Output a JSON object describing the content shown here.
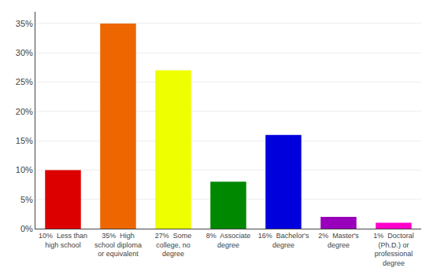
{
  "chart_data": {
    "type": "bar",
    "categories": [
      "10%  Less than\nhigh school",
      "35%  High\nschool diploma\nor equivalent",
      "27%  Some\ncollege, no\ndegree",
      "8%  Associate\ndegree",
      "16%  Bachelor's\ndegree",
      "2%  Master's\ndegree",
      "1%  Doctoral\n(Ph.D.) or\nprofessional\ndegree"
    ],
    "values": [
      10,
      35,
      27,
      8,
      16,
      2,
      1
    ],
    "colors": [
      "#dd0000",
      "#ee6600",
      "#eeff00",
      "#008800",
      "#0000dd",
      "#9900bb",
      "#ff00cc"
    ],
    "ylim": [
      0,
      37
    ],
    "yticks": [
      {
        "value": 0,
        "label": "0%"
      },
      {
        "value": 5,
        "label": "5%"
      },
      {
        "value": 10,
        "label": "10%"
      },
      {
        "value": 15,
        "label": "15%"
      },
      {
        "value": 20,
        "label": "20%"
      },
      {
        "value": 25,
        "label": "25%"
      },
      {
        "value": 30,
        "label": "30%"
      },
      {
        "value": 35,
        "label": "35%"
      }
    ],
    "grid": true
  }
}
